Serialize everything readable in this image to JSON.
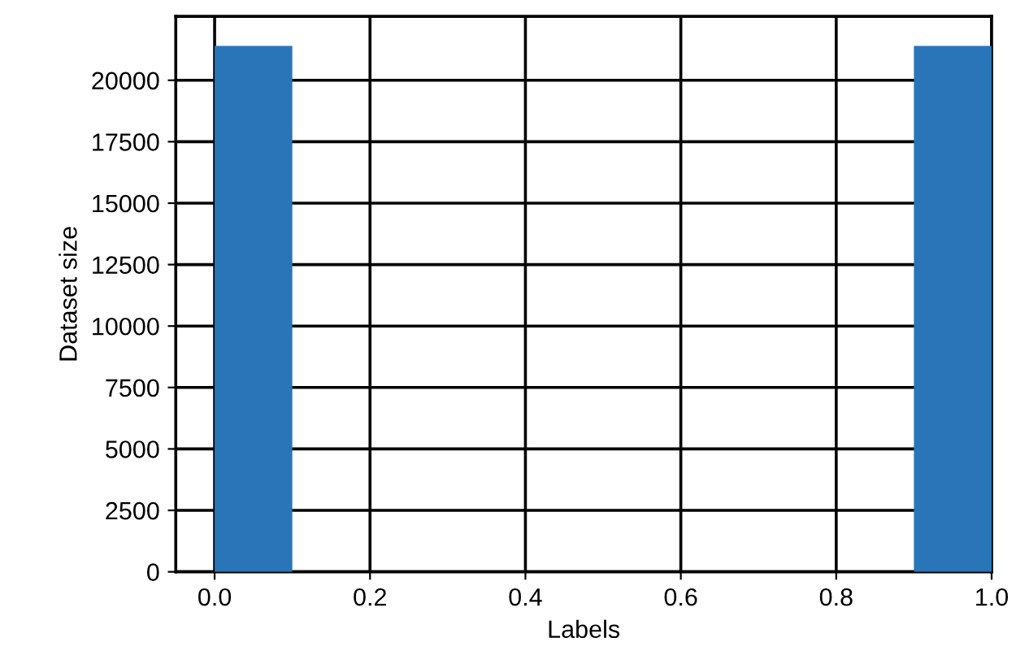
{
  "chart_data": {
    "type": "histogram",
    "xlabel": "Labels",
    "ylabel": "Dataset size",
    "bins": [
      0.0,
      0.1,
      0.2,
      0.3,
      0.4,
      0.5,
      0.6,
      0.7,
      0.8,
      0.9,
      1.0
    ],
    "values": [
      21400,
      0,
      0,
      0,
      0,
      0,
      0,
      0,
      0,
      21400
    ],
    "color": "#2a74b8",
    "xlim": [
      -0.05,
      1.0
    ],
    "xticks": [
      {
        "value": 0.0,
        "label": "0.0"
      },
      0.2,
      0.4,
      0.6,
      0.8,
      {
        "value": 1.0,
        "label": "1.0"
      }
    ],
    "ylim": [
      0,
      22600
    ],
    "yticks": [
      0,
      2500,
      5000,
      7500,
      10000,
      12500,
      15000,
      17500,
      20000
    ],
    "grid": true
  }
}
